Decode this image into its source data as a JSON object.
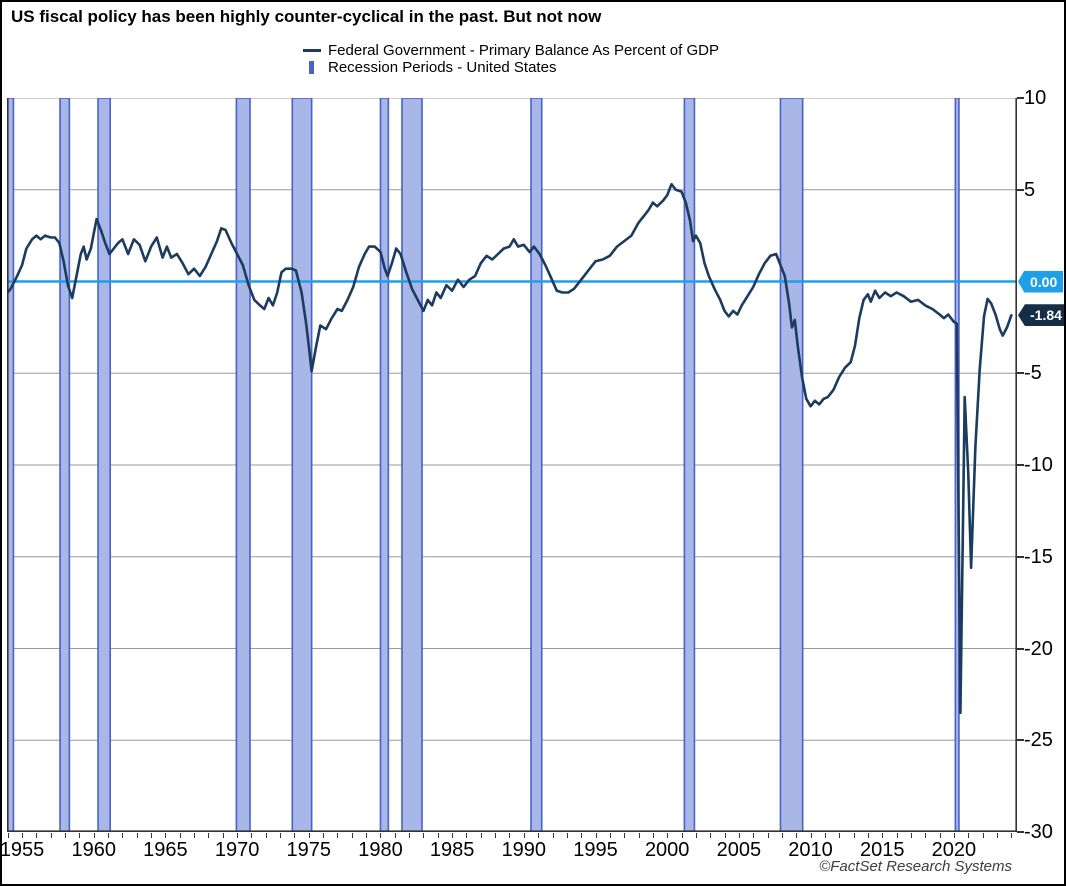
{
  "title": "US fiscal policy has been highly counter-cyclical in the past. But not now",
  "footer": "©FactSet Research Systems",
  "legend": {
    "items": [
      {
        "label": "Federal Government - Primary Balance As Percent of GDP",
        "swatch": "line-swatch"
      },
      {
        "label": "Recession Periods - United States",
        "swatch": "band-swatch"
      }
    ]
  },
  "badges": {
    "zero": {
      "label": "0.00",
      "value": 0,
      "color": "#1ea0e6"
    },
    "last": {
      "label": "-1.84",
      "value": -1.84,
      "color": "#152e47"
    }
  },
  "colors": {
    "line": "#1b3b5f",
    "zero_line": "#1ea0e6",
    "recession_fill": "#a9b6e8",
    "recession_stroke": "#4862c8",
    "grid": "#999999",
    "axis": "#333333"
  },
  "chart_data": {
    "type": "line",
    "title": "US fiscal policy has been highly counter-cyclical in the past. But not now",
    "xlabel": "",
    "ylabel": "Primary Balance As Percent of GDP",
    "x_range": [
      1953.95,
      2024.4
    ],
    "ylim": [
      -30,
      10
    ],
    "grid": true,
    "legend_position": "top",
    "y_ticks": [
      {
        "v": 10,
        "label": "10"
      },
      {
        "v": 5,
        "label": "5"
      },
      {
        "v": -5,
        "label": "-5"
      },
      {
        "v": -10,
        "label": "-10"
      },
      {
        "v": -15,
        "label": "-15"
      },
      {
        "v": -20,
        "label": "-20"
      },
      {
        "v": -25,
        "label": "-25"
      },
      {
        "v": -30,
        "label": "-30"
      }
    ],
    "x_ticks": [
      {
        "v": 1955,
        "label": "1955"
      },
      {
        "v": 1960,
        "label": "1960"
      },
      {
        "v": 1965,
        "label": "1965"
      },
      {
        "v": 1970,
        "label": "1970"
      },
      {
        "v": 1975,
        "label": "1975"
      },
      {
        "v": 1980,
        "label": "1980"
      },
      {
        "v": 1985,
        "label": "1985"
      },
      {
        "v": 1990,
        "label": "1990"
      },
      {
        "v": 1995,
        "label": "1995"
      },
      {
        "v": 2000,
        "label": "2000"
      },
      {
        "v": 2005,
        "label": "2005"
      },
      {
        "v": 2010,
        "label": "2010"
      },
      {
        "v": 2015,
        "label": "2015"
      },
      {
        "v": 2020,
        "label": "2020"
      }
    ],
    "zero_line": {
      "value": 0
    },
    "recessions": {
      "name": "Recession Periods - United States",
      "ranges": [
        [
          1953.6,
          1954.4
        ],
        [
          1957.65,
          1958.3
        ],
        [
          1960.3,
          1961.15
        ],
        [
          1969.95,
          1970.9
        ],
        [
          1973.85,
          1975.2
        ],
        [
          1980.0,
          1980.55
        ],
        [
          1981.5,
          1982.9
        ],
        [
          1990.5,
          1991.25
        ],
        [
          2001.2,
          2001.9
        ],
        [
          2007.9,
          2009.45
        ],
        [
          2020.1,
          2020.35
        ]
      ]
    },
    "series": [
      {
        "name": "Federal Government - Primary Balance As Percent of GDP",
        "last_value": -1.84,
        "points": [
          [
            1953.9,
            -0.7
          ],
          [
            1954.2,
            -0.4
          ],
          [
            1954.6,
            0.2
          ],
          [
            1955.0,
            0.9
          ],
          [
            1955.3,
            1.8
          ],
          [
            1955.7,
            2.3
          ],
          [
            1956.0,
            2.5
          ],
          [
            1956.3,
            2.3
          ],
          [
            1956.6,
            2.5
          ],
          [
            1957.0,
            2.4
          ],
          [
            1957.3,
            2.4
          ],
          [
            1957.6,
            2.1
          ],
          [
            1957.9,
            1.1
          ],
          [
            1958.2,
            -0.2
          ],
          [
            1958.5,
            -0.9
          ],
          [
            1958.8,
            0.3
          ],
          [
            1959.1,
            1.5
          ],
          [
            1959.3,
            1.9
          ],
          [
            1959.5,
            1.2
          ],
          [
            1959.8,
            1.8
          ],
          [
            1960.0,
            2.6
          ],
          [
            1960.2,
            3.4
          ],
          [
            1960.5,
            2.8
          ],
          [
            1960.8,
            2.1
          ],
          [
            1961.1,
            1.5
          ],
          [
            1961.4,
            1.8
          ],
          [
            1961.7,
            2.1
          ],
          [
            1962.0,
            2.3
          ],
          [
            1962.4,
            1.5
          ],
          [
            1962.8,
            2.3
          ],
          [
            1963.2,
            2.0
          ],
          [
            1963.6,
            1.1
          ],
          [
            1964.0,
            1.9
          ],
          [
            1964.4,
            2.4
          ],
          [
            1964.8,
            1.3
          ],
          [
            1965.1,
            1.9
          ],
          [
            1965.4,
            1.3
          ],
          [
            1965.8,
            1.5
          ],
          [
            1966.2,
            1.0
          ],
          [
            1966.6,
            0.4
          ],
          [
            1967.0,
            0.7
          ],
          [
            1967.4,
            0.3
          ],
          [
            1967.8,
            0.8
          ],
          [
            1968.2,
            1.5
          ],
          [
            1968.6,
            2.2
          ],
          [
            1968.9,
            2.9
          ],
          [
            1969.2,
            2.8
          ],
          [
            1969.6,
            2.1
          ],
          [
            1970.0,
            1.5
          ],
          [
            1970.4,
            0.9
          ],
          [
            1970.8,
            -0.2
          ],
          [
            1971.2,
            -1.0
          ],
          [
            1971.6,
            -1.3
          ],
          [
            1971.9,
            -1.5
          ],
          [
            1972.2,
            -0.9
          ],
          [
            1972.5,
            -1.3
          ],
          [
            1972.8,
            -0.6
          ],
          [
            1973.1,
            0.5
          ],
          [
            1973.4,
            0.7
          ],
          [
            1973.8,
            0.7
          ],
          [
            1974.1,
            0.6
          ],
          [
            1974.5,
            -0.6
          ],
          [
            1974.8,
            -2.2
          ],
          [
            1975.0,
            -3.5
          ],
          [
            1975.2,
            -4.9
          ],
          [
            1975.5,
            -3.6
          ],
          [
            1975.8,
            -2.4
          ],
          [
            1976.2,
            -2.6
          ],
          [
            1976.6,
            -2.0
          ],
          [
            1977.0,
            -1.5
          ],
          [
            1977.3,
            -1.6
          ],
          [
            1977.7,
            -1.0
          ],
          [
            1978.1,
            -0.3
          ],
          [
            1978.5,
            0.8
          ],
          [
            1978.9,
            1.5
          ],
          [
            1979.2,
            1.9
          ],
          [
            1979.6,
            1.9
          ],
          [
            1980.0,
            1.6
          ],
          [
            1980.3,
            0.7
          ],
          [
            1980.5,
            0.3
          ],
          [
            1980.8,
            1.0
          ],
          [
            1981.1,
            1.8
          ],
          [
            1981.4,
            1.5
          ],
          [
            1981.8,
            0.5
          ],
          [
            1982.2,
            -0.4
          ],
          [
            1982.6,
            -1.0
          ],
          [
            1983.0,
            -1.6
          ],
          [
            1983.3,
            -1.0
          ],
          [
            1983.6,
            -1.3
          ],
          [
            1983.9,
            -0.6
          ],
          [
            1984.2,
            -0.9
          ],
          [
            1984.6,
            -0.2
          ],
          [
            1985.0,
            -0.5
          ],
          [
            1985.4,
            0.1
          ],
          [
            1985.8,
            -0.3
          ],
          [
            1986.2,
            0.1
          ],
          [
            1986.6,
            0.3
          ],
          [
            1987.0,
            1.0
          ],
          [
            1987.4,
            1.4
          ],
          [
            1987.8,
            1.2
          ],
          [
            1988.2,
            1.5
          ],
          [
            1988.6,
            1.8
          ],
          [
            1989.0,
            1.9
          ],
          [
            1989.3,
            2.3
          ],
          [
            1989.6,
            1.9
          ],
          [
            1990.0,
            2.0
          ],
          [
            1990.4,
            1.6
          ],
          [
            1990.7,
            1.9
          ],
          [
            1991.1,
            1.5
          ],
          [
            1991.5,
            0.9
          ],
          [
            1991.9,
            0.2
          ],
          [
            1992.3,
            -0.5
          ],
          [
            1992.7,
            -0.6
          ],
          [
            1993.1,
            -0.6
          ],
          [
            1993.5,
            -0.4
          ],
          [
            1994.0,
            0.1
          ],
          [
            1994.5,
            0.6
          ],
          [
            1995.0,
            1.1
          ],
          [
            1995.5,
            1.2
          ],
          [
            1996.0,
            1.4
          ],
          [
            1996.5,
            1.9
          ],
          [
            1997.0,
            2.2
          ],
          [
            1997.5,
            2.5
          ],
          [
            1998.0,
            3.2
          ],
          [
            1998.4,
            3.6
          ],
          [
            1998.7,
            3.9
          ],
          [
            1999.0,
            4.3
          ],
          [
            1999.3,
            4.1
          ],
          [
            1999.7,
            4.4
          ],
          [
            2000.0,
            4.7
          ],
          [
            2000.3,
            5.3
          ],
          [
            2000.6,
            5.0
          ],
          [
            2001.0,
            4.9
          ],
          [
            2001.3,
            4.3
          ],
          [
            2001.6,
            3.3
          ],
          [
            2001.8,
            2.2
          ],
          [
            2002.0,
            2.5
          ],
          [
            2002.3,
            2.1
          ],
          [
            2002.6,
            1.0
          ],
          [
            2002.9,
            0.3
          ],
          [
            2003.3,
            -0.4
          ],
          [
            2003.7,
            -1.0
          ],
          [
            2004.0,
            -1.6
          ],
          [
            2004.3,
            -1.9
          ],
          [
            2004.6,
            -1.6
          ],
          [
            2004.9,
            -1.8
          ],
          [
            2005.2,
            -1.3
          ],
          [
            2005.6,
            -0.8
          ],
          [
            2006.0,
            -0.3
          ],
          [
            2006.4,
            0.4
          ],
          [
            2006.8,
            1.0
          ],
          [
            2007.2,
            1.4
          ],
          [
            2007.6,
            1.5
          ],
          [
            2007.9,
            0.9
          ],
          [
            2008.2,
            0.3
          ],
          [
            2008.5,
            -1.2
          ],
          [
            2008.7,
            -2.5
          ],
          [
            2008.9,
            -2.1
          ],
          [
            2009.1,
            -3.5
          ],
          [
            2009.4,
            -5.2
          ],
          [
            2009.7,
            -6.4
          ],
          [
            2010.0,
            -6.8
          ],
          [
            2010.3,
            -6.5
          ],
          [
            2010.6,
            -6.7
          ],
          [
            2010.9,
            -6.4
          ],
          [
            2011.2,
            -6.3
          ],
          [
            2011.6,
            -5.9
          ],
          [
            2012.0,
            -5.2
          ],
          [
            2012.4,
            -4.7
          ],
          [
            2012.8,
            -4.4
          ],
          [
            2013.1,
            -3.5
          ],
          [
            2013.4,
            -2.0
          ],
          [
            2013.7,
            -1.0
          ],
          [
            2014.0,
            -0.7
          ],
          [
            2014.2,
            -1.1
          ],
          [
            2014.5,
            -0.5
          ],
          [
            2014.8,
            -0.9
          ],
          [
            2015.2,
            -0.6
          ],
          [
            2015.6,
            -0.8
          ],
          [
            2016.0,
            -0.6
          ],
          [
            2016.5,
            -0.8
          ],
          [
            2017.0,
            -1.1
          ],
          [
            2017.5,
            -1.0
          ],
          [
            2018.0,
            -1.3
          ],
          [
            2018.5,
            -1.5
          ],
          [
            2019.0,
            -1.8
          ],
          [
            2019.3,
            -2.0
          ],
          [
            2019.6,
            -1.8
          ],
          [
            2020.0,
            -2.2
          ],
          [
            2020.2,
            -2.3
          ],
          [
            2020.45,
            -23.5
          ],
          [
            2020.75,
            -6.3
          ],
          [
            2021.0,
            -10.5
          ],
          [
            2021.2,
            -15.6
          ],
          [
            2021.5,
            -9.0
          ],
          [
            2021.8,
            -4.8
          ],
          [
            2022.1,
            -1.9
          ],
          [
            2022.35,
            -0.95
          ],
          [
            2022.6,
            -1.2
          ],
          [
            2022.9,
            -1.8
          ],
          [
            2023.2,
            -2.6
          ],
          [
            2023.4,
            -2.95
          ],
          [
            2023.7,
            -2.5
          ],
          [
            2024.0,
            -1.84
          ]
        ]
      }
    ]
  }
}
